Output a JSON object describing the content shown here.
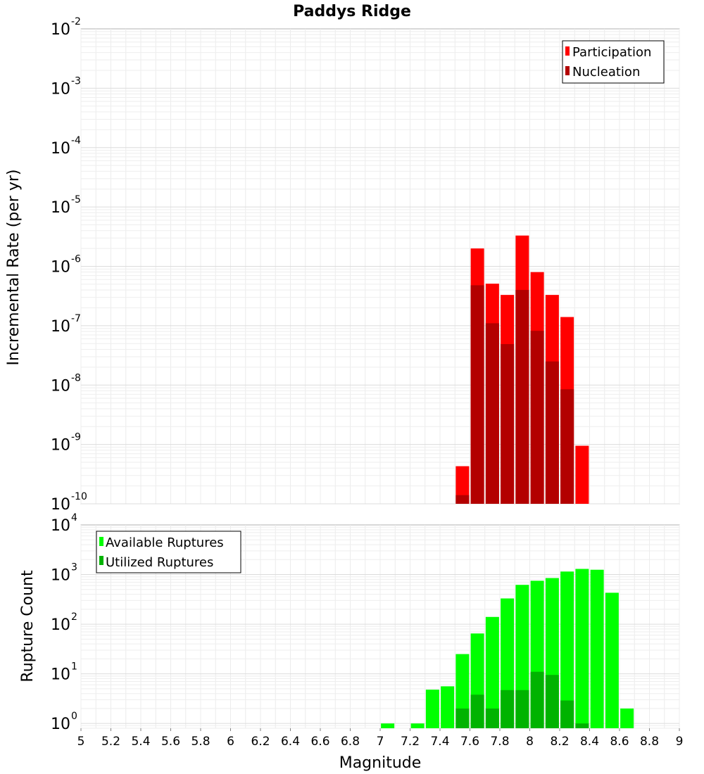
{
  "chart_data": [
    {
      "type": "bar",
      "title": "Paddys Ridge",
      "xlabel": "",
      "ylabel": "Incremental Rate (per yr)",
      "yscale": "log",
      "ylim": [
        1e-10,
        0.01
      ],
      "xlim": [
        5,
        9
      ],
      "grid": true,
      "legend_position": "top-right",
      "series": [
        {
          "name": "Participation",
          "color": "#ff0000",
          "points": [
            {
              "x": 7.55,
              "y": 4.3e-10
            },
            {
              "x": 7.65,
              "y": 2e-06
            },
            {
              "x": 7.75,
              "y": 5.1e-07
            },
            {
              "x": 7.85,
              "y": 3.3e-07
            },
            {
              "x": 7.95,
              "y": 3.3e-06
            },
            {
              "x": 8.05,
              "y": 8e-07
            },
            {
              "x": 8.15,
              "y": 3.3e-07
            },
            {
              "x": 8.25,
              "y": 1.4e-07
            },
            {
              "x": 8.35,
              "y": 9.5e-10
            }
          ]
        },
        {
          "name": "Nucleation",
          "color": "#b30000",
          "points": [
            {
              "x": 7.55,
              "y": 1.4e-10
            },
            {
              "x": 7.65,
              "y": 4.8e-07
            },
            {
              "x": 7.75,
              "y": 1.1e-07
            },
            {
              "x": 7.85,
              "y": 4.9e-08
            },
            {
              "x": 7.95,
              "y": 4e-07
            },
            {
              "x": 8.05,
              "y": 8.2e-08
            },
            {
              "x": 8.15,
              "y": 2.5e-08
            },
            {
              "x": 8.25,
              "y": 8.5e-09
            }
          ]
        }
      ]
    },
    {
      "type": "bar",
      "title": "",
      "xlabel": "Magnitude",
      "ylabel": "Rupture Count",
      "yscale": "log",
      "ylim": [
        0.8,
        10000
      ],
      "xlim": [
        5,
        9
      ],
      "xticks": [
        "5",
        "5.2",
        "5.4",
        "5.6",
        "5.8",
        "6",
        "6.2",
        "6.4",
        "6.6",
        "6.8",
        "7",
        "7.2",
        "7.4",
        "7.6",
        "7.8",
        "8",
        "8.2",
        "8.4",
        "8.6",
        "8.8",
        "9"
      ],
      "grid": true,
      "legend_position": "top-left",
      "series": [
        {
          "name": "Available Ruptures",
          "color": "#00ff00",
          "points": [
            {
              "x": 7.05,
              "y": 1
            },
            {
              "x": 7.25,
              "y": 1
            },
            {
              "x": 7.35,
              "y": 4.8
            },
            {
              "x": 7.45,
              "y": 5.6
            },
            {
              "x": 7.55,
              "y": 25
            },
            {
              "x": 7.65,
              "y": 65
            },
            {
              "x": 7.75,
              "y": 140
            },
            {
              "x": 7.85,
              "y": 330
            },
            {
              "x": 7.95,
              "y": 620
            },
            {
              "x": 8.05,
              "y": 750
            },
            {
              "x": 8.15,
              "y": 850
            },
            {
              "x": 8.25,
              "y": 1150
            },
            {
              "x": 8.35,
              "y": 1300
            },
            {
              "x": 8.45,
              "y": 1250
            },
            {
              "x": 8.55,
              "y": 430
            },
            {
              "x": 8.65,
              "y": 2
            }
          ]
        },
        {
          "name": "Utilized Ruptures",
          "color": "#00b300",
          "points": [
            {
              "x": 7.55,
              "y": 2
            },
            {
              "x": 7.65,
              "y": 3.8
            },
            {
              "x": 7.75,
              "y": 2
            },
            {
              "x": 7.85,
              "y": 4.7
            },
            {
              "x": 7.95,
              "y": 4.7
            },
            {
              "x": 8.05,
              "y": 11
            },
            {
              "x": 8.15,
              "y": 9.5
            },
            {
              "x": 8.25,
              "y": 2.9
            },
            {
              "x": 8.35,
              "y": 1
            }
          ]
        }
      ]
    }
  ],
  "top_yticks": [
    {
      "base": "10",
      "exp": "-10",
      "value": 1e-10
    },
    {
      "base": "10",
      "exp": "-9",
      "value": 1e-09
    },
    {
      "base": "10",
      "exp": "-8",
      "value": 1e-08
    },
    {
      "base": "10",
      "exp": "-7",
      "value": 1e-07
    },
    {
      "base": "10",
      "exp": "-6",
      "value": 1e-06
    },
    {
      "base": "10",
      "exp": "-5",
      "value": 1e-05
    },
    {
      "base": "10",
      "exp": "-4",
      "value": 0.0001
    },
    {
      "base": "10",
      "exp": "-3",
      "value": 0.001
    },
    {
      "base": "10",
      "exp": "-2",
      "value": 0.01
    }
  ],
  "bottom_yticks": [
    {
      "base": "10",
      "exp": "0",
      "value": 1
    },
    {
      "base": "10",
      "exp": "1",
      "value": 10
    },
    {
      "base": "10",
      "exp": "2",
      "value": 100
    },
    {
      "base": "10",
      "exp": "3",
      "value": 1000
    },
    {
      "base": "10",
      "exp": "4",
      "value": 10000
    }
  ]
}
